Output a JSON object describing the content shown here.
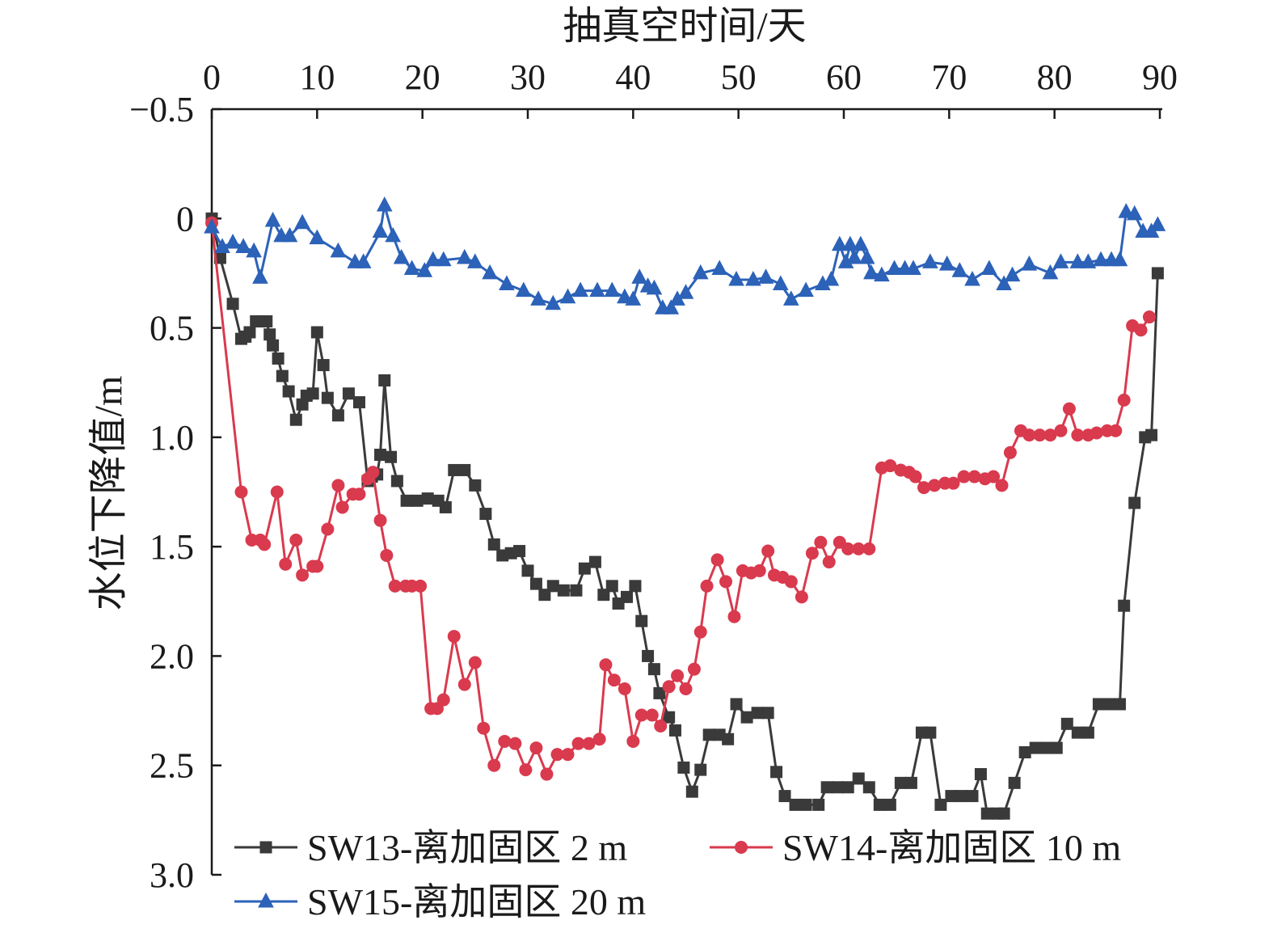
{
  "chart_data": {
    "type": "line",
    "x_title": "抽真空时间/天",
    "y_title": "水位下降值/m",
    "x_ticks": [
      "0",
      "10",
      "20",
      "30",
      "40",
      "50",
      "60",
      "70",
      "80",
      "90"
    ],
    "y_ticks": [
      "−0.5",
      "0",
      "0.5",
      "1.0",
      "1.5",
      "2.0",
      "2.5",
      "3.0"
    ],
    "xlim": [
      0,
      90
    ],
    "ylim": [
      -0.5,
      3.0
    ],
    "y_inverted": true,
    "x_axis_position": "top",
    "legend_position": "bottom",
    "series": [
      {
        "name": "SW13-离加固区 2 m",
        "color": "#3a3a3a",
        "marker": "square",
        "points": [
          [
            0,
            0
          ],
          [
            0.8,
            0.18
          ],
          [
            2,
            0.39
          ],
          [
            2.8,
            0.55
          ],
          [
            3.2,
            0.54
          ],
          [
            3.6,
            0.52
          ],
          [
            4.2,
            0.47
          ],
          [
            4.8,
            0.47
          ],
          [
            5.2,
            0.47
          ],
          [
            5.5,
            0.53
          ],
          [
            5.8,
            0.58
          ],
          [
            6.3,
            0.64
          ],
          [
            6.7,
            0.72
          ],
          [
            7.3,
            0.79
          ],
          [
            8,
            0.92
          ],
          [
            8.6,
            0.85
          ],
          [
            9,
            0.81
          ],
          [
            9.6,
            0.8
          ],
          [
            10,
            0.52
          ],
          [
            10.6,
            0.67
          ],
          [
            11,
            0.82
          ],
          [
            12,
            0.9
          ],
          [
            13,
            0.8
          ],
          [
            14,
            0.84
          ],
          [
            14.8,
            1.2
          ],
          [
            15.2,
            1.18
          ],
          [
            15.7,
            1.17
          ],
          [
            16,
            1.08
          ],
          [
            16.4,
            0.74
          ],
          [
            17,
            1.09
          ],
          [
            17.6,
            1.2
          ],
          [
            18.5,
            1.29
          ],
          [
            19.5,
            1.29
          ],
          [
            20.5,
            1.28
          ],
          [
            21.5,
            1.29
          ],
          [
            22.2,
            1.32
          ],
          [
            23,
            1.15
          ],
          [
            24,
            1.15
          ],
          [
            25,
            1.22
          ],
          [
            26,
            1.35
          ],
          [
            26.8,
            1.49
          ],
          [
            27.6,
            1.54
          ],
          [
            28.4,
            1.53
          ],
          [
            29.2,
            1.52
          ],
          [
            30,
            1.61
          ],
          [
            30.8,
            1.67
          ],
          [
            31.6,
            1.72
          ],
          [
            32.4,
            1.68
          ],
          [
            33.4,
            1.7
          ],
          [
            34.6,
            1.7
          ],
          [
            35.4,
            1.6
          ],
          [
            36.4,
            1.57
          ],
          [
            37.2,
            1.72
          ],
          [
            38,
            1.68
          ],
          [
            38.6,
            1.76
          ],
          [
            39.4,
            1.73
          ],
          [
            40.2,
            1.68
          ],
          [
            40.8,
            1.84
          ],
          [
            41.4,
            2.0
          ],
          [
            42,
            2.06
          ],
          [
            42.5,
            2.17
          ],
          [
            43.4,
            2.28
          ],
          [
            44,
            2.34
          ],
          [
            44.8,
            2.51
          ],
          [
            45.6,
            2.62
          ],
          [
            46.4,
            2.52
          ],
          [
            47.2,
            2.36
          ],
          [
            48.2,
            2.36
          ],
          [
            49,
            2.38
          ],
          [
            49.8,
            2.22
          ],
          [
            50.8,
            2.28
          ],
          [
            51.8,
            2.26
          ],
          [
            52.8,
            2.26
          ],
          [
            53.6,
            2.53
          ],
          [
            54.4,
            2.64
          ],
          [
            55.4,
            2.68
          ],
          [
            56.4,
            2.68
          ],
          [
            57.6,
            2.68
          ],
          [
            58.4,
            2.6
          ],
          [
            59.4,
            2.6
          ],
          [
            60.4,
            2.6
          ],
          [
            61.4,
            2.56
          ],
          [
            62.4,
            2.6
          ],
          [
            63.4,
            2.68
          ],
          [
            64.4,
            2.68
          ],
          [
            65.4,
            2.58
          ],
          [
            66.4,
            2.58
          ],
          [
            67.4,
            2.35
          ],
          [
            68.2,
            2.35
          ],
          [
            69.2,
            2.68
          ],
          [
            70.2,
            2.64
          ],
          [
            71.2,
            2.64
          ],
          [
            72.2,
            2.64
          ],
          [
            73,
            2.54
          ],
          [
            73.6,
            2.72
          ],
          [
            74.6,
            2.72
          ],
          [
            75.2,
            2.72
          ],
          [
            76.2,
            2.58
          ],
          [
            77.2,
            2.44
          ],
          [
            78.2,
            2.42
          ],
          [
            79.2,
            2.42
          ],
          [
            80.2,
            2.42
          ],
          [
            81.2,
            2.31
          ],
          [
            82.2,
            2.35
          ],
          [
            83.2,
            2.35
          ],
          [
            84.2,
            2.22
          ],
          [
            85.2,
            2.22
          ],
          [
            86.2,
            2.22
          ],
          [
            86.6,
            1.77
          ],
          [
            87.6,
            1.3
          ],
          [
            88.6,
            1.0
          ],
          [
            89.2,
            0.99
          ],
          [
            89.8,
            0.25
          ]
        ]
      },
      {
        "name": "SW14-离加固区 10 m",
        "color": "#d93a4e",
        "marker": "circle",
        "points": [
          [
            0,
            0.02
          ],
          [
            2.8,
            1.25
          ],
          [
            3.8,
            1.47
          ],
          [
            4.6,
            1.47
          ],
          [
            5,
            1.49
          ],
          [
            6.2,
            1.25
          ],
          [
            7,
            1.58
          ],
          [
            8,
            1.47
          ],
          [
            8.6,
            1.63
          ],
          [
            9.6,
            1.59
          ],
          [
            10,
            1.59
          ],
          [
            11,
            1.42
          ],
          [
            12,
            1.22
          ],
          [
            12.4,
            1.32
          ],
          [
            13.4,
            1.26
          ],
          [
            14,
            1.26
          ],
          [
            14.8,
            1.19
          ],
          [
            15.3,
            1.16
          ],
          [
            16,
            1.38
          ],
          [
            16.6,
            1.54
          ],
          [
            17.4,
            1.68
          ],
          [
            18.4,
            1.68
          ],
          [
            19,
            1.68
          ],
          [
            19.8,
            1.68
          ],
          [
            20.8,
            2.24
          ],
          [
            21.4,
            2.24
          ],
          [
            22,
            2.2
          ],
          [
            23,
            1.91
          ],
          [
            24,
            2.13
          ],
          [
            25,
            2.03
          ],
          [
            25.8,
            2.33
          ],
          [
            26.8,
            2.5
          ],
          [
            27.8,
            2.39
          ],
          [
            28.8,
            2.4
          ],
          [
            29.8,
            2.52
          ],
          [
            30.8,
            2.42
          ],
          [
            31.8,
            2.54
          ],
          [
            32.8,
            2.45
          ],
          [
            33.8,
            2.45
          ],
          [
            34.8,
            2.4
          ],
          [
            35.8,
            2.4
          ],
          [
            36.8,
            2.38
          ],
          [
            37.4,
            2.04
          ],
          [
            38.2,
            2.11
          ],
          [
            39.2,
            2.15
          ],
          [
            40,
            2.39
          ],
          [
            40.8,
            2.27
          ],
          [
            41.8,
            2.27
          ],
          [
            42.6,
            2.32
          ],
          [
            43.4,
            2.14
          ],
          [
            44.2,
            2.09
          ],
          [
            45,
            2.15
          ],
          [
            45.8,
            2.06
          ],
          [
            46.4,
            1.89
          ],
          [
            47,
            1.68
          ],
          [
            48,
            1.56
          ],
          [
            48.8,
            1.66
          ],
          [
            49.6,
            1.82
          ],
          [
            50.4,
            1.61
          ],
          [
            51.2,
            1.62
          ],
          [
            52,
            1.61
          ],
          [
            52.8,
            1.52
          ],
          [
            53.4,
            1.63
          ],
          [
            54.2,
            1.64
          ],
          [
            55,
            1.66
          ],
          [
            56,
            1.73
          ],
          [
            57,
            1.53
          ],
          [
            57.8,
            1.48
          ],
          [
            58.6,
            1.57
          ],
          [
            59.6,
            1.48
          ],
          [
            60.4,
            1.51
          ],
          [
            61.4,
            1.51
          ],
          [
            62.4,
            1.51
          ],
          [
            63.6,
            1.14
          ],
          [
            64.4,
            1.13
          ],
          [
            65.4,
            1.15
          ],
          [
            66.2,
            1.16
          ],
          [
            66.8,
            1.18
          ],
          [
            67.6,
            1.23
          ],
          [
            68.6,
            1.22
          ],
          [
            69.6,
            1.21
          ],
          [
            70.4,
            1.21
          ],
          [
            71.4,
            1.18
          ],
          [
            72.4,
            1.18
          ],
          [
            73.4,
            1.19
          ],
          [
            74.2,
            1.18
          ],
          [
            75,
            1.22
          ],
          [
            75.8,
            1.07
          ],
          [
            76.8,
            0.97
          ],
          [
            77.6,
            0.99
          ],
          [
            78.6,
            0.99
          ],
          [
            79.6,
            0.99
          ],
          [
            80.6,
            0.97
          ],
          [
            81.4,
            0.87
          ],
          [
            82.2,
            0.99
          ],
          [
            83.2,
            0.99
          ],
          [
            84,
            0.98
          ],
          [
            85,
            0.97
          ],
          [
            85.8,
            0.97
          ],
          [
            86.6,
            0.83
          ],
          [
            87.4,
            0.49
          ],
          [
            88.2,
            0.51
          ],
          [
            89,
            0.45
          ]
        ]
      },
      {
        "name": "SW15-离加固区 20 m",
        "color": "#2c62b8",
        "marker": "triangle",
        "points": [
          [
            0,
            0.04
          ],
          [
            1,
            0.13
          ],
          [
            2,
            0.11
          ],
          [
            3,
            0.13
          ],
          [
            4,
            0.15
          ],
          [
            4.6,
            0.27
          ],
          [
            5.8,
            0.01
          ],
          [
            6.6,
            0.08
          ],
          [
            7.4,
            0.08
          ],
          [
            8.6,
            0.02
          ],
          [
            10,
            0.09
          ],
          [
            12,
            0.15
          ],
          [
            13.6,
            0.2
          ],
          [
            14.4,
            0.2
          ],
          [
            16,
            0.06
          ],
          [
            16.4,
            -0.06
          ],
          [
            17.2,
            0.08
          ],
          [
            18,
            0.18
          ],
          [
            19,
            0.23
          ],
          [
            20.2,
            0.24
          ],
          [
            21,
            0.19
          ],
          [
            22,
            0.19
          ],
          [
            24,
            0.18
          ],
          [
            25,
            0.2
          ],
          [
            26.4,
            0.25
          ],
          [
            28,
            0.3
          ],
          [
            29.6,
            0.33
          ],
          [
            31,
            0.37
          ],
          [
            32.4,
            0.39
          ],
          [
            33.8,
            0.36
          ],
          [
            35,
            0.33
          ],
          [
            36.6,
            0.33
          ],
          [
            38,
            0.33
          ],
          [
            39.2,
            0.36
          ],
          [
            40,
            0.37
          ],
          [
            40.6,
            0.27
          ],
          [
            41.4,
            0.31
          ],
          [
            42,
            0.32
          ],
          [
            42.8,
            0.41
          ],
          [
            43.6,
            0.41
          ],
          [
            44.2,
            0.37
          ],
          [
            45,
            0.34
          ],
          [
            46.4,
            0.25
          ],
          [
            48.2,
            0.23
          ],
          [
            49.8,
            0.28
          ],
          [
            51.4,
            0.28
          ],
          [
            52.6,
            0.27
          ],
          [
            54,
            0.3
          ],
          [
            55,
            0.37
          ],
          [
            56.4,
            0.33
          ],
          [
            58,
            0.3
          ],
          [
            58.8,
            0.28
          ],
          [
            59.6,
            0.12
          ],
          [
            60.2,
            0.2
          ],
          [
            60.6,
            0.12
          ],
          [
            61,
            0.18
          ],
          [
            61.6,
            0.12
          ],
          [
            62.2,
            0.18
          ],
          [
            62.6,
            0.25
          ],
          [
            63.6,
            0.26
          ],
          [
            64.8,
            0.23
          ],
          [
            65.8,
            0.23
          ],
          [
            66.6,
            0.23
          ],
          [
            68.2,
            0.2
          ],
          [
            69.8,
            0.21
          ],
          [
            71,
            0.24
          ],
          [
            72.2,
            0.28
          ],
          [
            73.8,
            0.23
          ],
          [
            75.2,
            0.3
          ],
          [
            76,
            0.26
          ],
          [
            77.6,
            0.21
          ],
          [
            79.6,
            0.25
          ],
          [
            80.6,
            0.2
          ],
          [
            82.2,
            0.2
          ],
          [
            83.2,
            0.2
          ],
          [
            84.4,
            0.19
          ],
          [
            85.4,
            0.19
          ],
          [
            86.2,
            0.19
          ],
          [
            86.8,
            -0.03
          ],
          [
            87.6,
            -0.02
          ],
          [
            88.4,
            0.06
          ],
          [
            89.2,
            0.06
          ],
          [
            89.8,
            0.03
          ]
        ]
      }
    ]
  }
}
